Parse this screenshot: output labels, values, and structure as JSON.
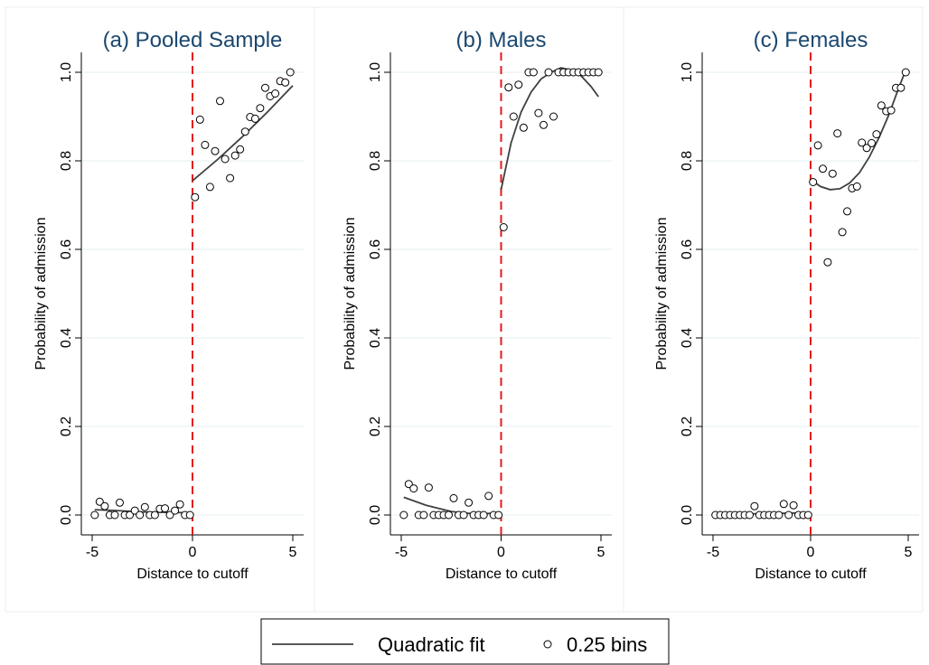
{
  "chart_data": [
    {
      "type": "scatter",
      "title": "(a) Pooled Sample",
      "xlabel": "Distance to cutoff",
      "ylabel": "Probability of admission",
      "xlim": [
        -5,
        5
      ],
      "ylim": [
        0,
        1
      ],
      "xticks": [
        "-5",
        "0",
        "5"
      ],
      "yticks": [
        "0.0",
        "0.2",
        "0.4",
        "0.6",
        "0.8",
        "1.0"
      ],
      "cutoff": 0,
      "grid": true,
      "bins": {
        "name": "0.25 bins",
        "points": [
          [
            -4.875,
            0.0
          ],
          [
            -4.625,
            0.03
          ],
          [
            -4.375,
            0.02
          ],
          [
            -4.125,
            0.0
          ],
          [
            -3.875,
            0.0
          ],
          [
            -3.625,
            0.028
          ],
          [
            -3.375,
            0.0
          ],
          [
            -3.125,
            0.0
          ],
          [
            -2.875,
            0.01
          ],
          [
            -2.625,
            0.0
          ],
          [
            -2.375,
            0.018
          ],
          [
            -2.125,
            0.0
          ],
          [
            -1.875,
            0.0
          ],
          [
            -1.625,
            0.014
          ],
          [
            -1.375,
            0.015
          ],
          [
            -1.125,
            0.0
          ],
          [
            -0.875,
            0.01
          ],
          [
            -0.625,
            0.024
          ],
          [
            -0.375,
            0.0
          ],
          [
            -0.125,
            0.0
          ],
          [
            0.125,
            0.718
          ],
          [
            0.375,
            0.893
          ],
          [
            0.625,
            0.836
          ],
          [
            0.875,
            0.741
          ],
          [
            1.125,
            0.822
          ],
          [
            1.375,
            0.935
          ],
          [
            1.625,
            0.804
          ],
          [
            1.875,
            0.761
          ],
          [
            2.125,
            0.812
          ],
          [
            2.375,
            0.826
          ],
          [
            2.625,
            0.866
          ],
          [
            2.875,
            0.899
          ],
          [
            3.125,
            0.895
          ],
          [
            3.375,
            0.919
          ],
          [
            3.625,
            0.965
          ],
          [
            3.875,
            0.946
          ],
          [
            4.125,
            0.952
          ],
          [
            4.375,
            0.98
          ],
          [
            4.625,
            0.977
          ],
          [
            4.875,
            1.0
          ]
        ]
      },
      "fit": {
        "name": "Quadratic fit",
        "segments": [
          {
            "x": [
              -4.875,
              -3.75,
              -2.5,
              -1.25,
              0
            ],
            "y": [
              0.012,
              0.01,
              0.007,
              0.006,
              0.005
            ]
          },
          {
            "x": [
              0,
              1.25,
              2.5,
              3.75,
              5
            ],
            "y": [
              0.755,
              0.803,
              0.855,
              0.911,
              0.97
            ]
          }
        ]
      }
    },
    {
      "type": "scatter",
      "title": "(b) Males",
      "xlabel": "Distance to cutoff",
      "ylabel": "Probability of admission",
      "xlim": [
        -5,
        5
      ],
      "ylim": [
        0,
        1
      ],
      "xticks": [
        "-5",
        "0",
        "5"
      ],
      "yticks": [
        "0.0",
        "0.2",
        "0.4",
        "0.6",
        "0.8",
        "1.0"
      ],
      "cutoff": 0,
      "grid": true,
      "bins": {
        "name": "0.25 bins",
        "points": [
          [
            -4.875,
            0.0
          ],
          [
            -4.625,
            0.07
          ],
          [
            -4.375,
            0.06
          ],
          [
            -4.125,
            0.0
          ],
          [
            -3.875,
            0.0
          ],
          [
            -3.625,
            0.062
          ],
          [
            -3.375,
            0.0
          ],
          [
            -3.125,
            0.0
          ],
          [
            -2.875,
            0.0
          ],
          [
            -2.625,
            0.0
          ],
          [
            -2.375,
            0.038
          ],
          [
            -2.125,
            0.0
          ],
          [
            -1.875,
            0.0
          ],
          [
            -1.625,
            0.028
          ],
          [
            -1.375,
            0.0
          ],
          [
            -1.125,
            0.0
          ],
          [
            -0.875,
            0.0
          ],
          [
            -0.625,
            0.043
          ],
          [
            -0.375,
            0.0
          ],
          [
            -0.125,
            0.0
          ],
          [
            0.125,
            0.65
          ],
          [
            0.375,
            0.966
          ],
          [
            0.625,
            0.9
          ],
          [
            0.875,
            0.972
          ],
          [
            1.125,
            0.875
          ],
          [
            1.375,
            1.0
          ],
          [
            1.625,
            1.0
          ],
          [
            1.875,
            0.908
          ],
          [
            2.125,
            0.881
          ],
          [
            2.375,
            1.0
          ],
          [
            2.625,
            0.9
          ],
          [
            2.875,
            1.0
          ],
          [
            3.125,
            1.0
          ],
          [
            3.375,
            1.0
          ],
          [
            3.625,
            1.0
          ],
          [
            3.875,
            1.0
          ],
          [
            4.125,
            1.0
          ],
          [
            4.375,
            1.0
          ],
          [
            4.625,
            1.0
          ],
          [
            4.875,
            1.0
          ]
        ]
      },
      "fit": {
        "name": "Quadratic fit",
        "segments": [
          {
            "x": [
              -4.875,
              -3.75,
              -2.5,
              -1.25,
              0
            ],
            "y": [
              0.04,
              0.022,
              0.008,
              0.002,
              0.005
            ]
          },
          {
            "x": [
              0,
              0.5,
              1,
              1.5,
              2,
              2.5,
              3,
              3.5,
              4,
              4.5,
              4.875
            ],
            "y": [
              0.735,
              0.84,
              0.91,
              0.955,
              0.985,
              1.0,
              1.01,
              1.005,
              0.992,
              0.968,
              0.945
            ]
          }
        ]
      }
    },
    {
      "type": "scatter",
      "title": "(c) Females",
      "xlabel": "Distance to cutoff",
      "ylabel": "Probability of admission",
      "xlim": [
        -5,
        5
      ],
      "ylim": [
        0,
        1
      ],
      "xticks": [
        "-5",
        "0",
        "5"
      ],
      "yticks": [
        "0.0",
        "0.2",
        "0.4",
        "0.6",
        "0.8",
        "1.0"
      ],
      "cutoff": 0,
      "grid": true,
      "bins": {
        "name": "0.25 bins",
        "points": [
          [
            -4.875,
            0.0
          ],
          [
            -4.625,
            0.0
          ],
          [
            -4.375,
            0.0
          ],
          [
            -4.125,
            0.0
          ],
          [
            -3.875,
            0.0
          ],
          [
            -3.625,
            0.0
          ],
          [
            -3.375,
            0.0
          ],
          [
            -3.125,
            0.0
          ],
          [
            -2.875,
            0.02
          ],
          [
            -2.625,
            0.0
          ],
          [
            -2.375,
            0.0
          ],
          [
            -2.125,
            0.0
          ],
          [
            -1.875,
            0.0
          ],
          [
            -1.625,
            0.0
          ],
          [
            -1.375,
            0.025
          ],
          [
            -1.125,
            0.0
          ],
          [
            -0.875,
            0.022
          ],
          [
            -0.625,
            0.0
          ],
          [
            -0.375,
            0.0
          ],
          [
            -0.125,
            0.0
          ],
          [
            0.125,
            0.752
          ],
          [
            0.375,
            0.835
          ],
          [
            0.625,
            0.782
          ],
          [
            0.875,
            0.571
          ],
          [
            1.125,
            0.771
          ],
          [
            1.375,
            0.862
          ],
          [
            1.625,
            0.639
          ],
          [
            1.875,
            0.686
          ],
          [
            2.125,
            0.738
          ],
          [
            2.375,
            0.742
          ],
          [
            2.625,
            0.841
          ],
          [
            2.875,
            0.829
          ],
          [
            3.125,
            0.84
          ],
          [
            3.375,
            0.86
          ],
          [
            3.625,
            0.925
          ],
          [
            3.875,
            0.912
          ],
          [
            4.125,
            0.914
          ],
          [
            4.375,
            0.965
          ],
          [
            4.625,
            0.965
          ],
          [
            4.875,
            1.0
          ]
        ]
      },
      "fit": {
        "name": "Quadratic fit",
        "segments": [
          {
            "x": [
              -4.875,
              -3.75,
              -2.5,
              -1.25,
              0
            ],
            "y": [
              0.003,
              0.002,
              0.003,
              0.004,
              0.005
            ]
          },
          {
            "x": [
              0,
              0.5,
              1,
              1.5,
              2,
              2.5,
              3,
              3.5,
              4,
              4.5,
              4.875
            ],
            "y": [
              0.758,
              0.742,
              0.735,
              0.737,
              0.75,
              0.773,
              0.808,
              0.852,
              0.903,
              0.963,
              1.005
            ]
          }
        ]
      }
    }
  ],
  "legend": {
    "items": [
      {
        "label": "Quadratic fit",
        "symbol": "line"
      },
      {
        "label": "0.25 bins",
        "symbol": "hollow-circle"
      }
    ]
  },
  "colors": {
    "title": "#1a476f",
    "cutoff_line": "#e31a1c",
    "fit_line": "#404040",
    "grid": "#eaf2f3"
  }
}
